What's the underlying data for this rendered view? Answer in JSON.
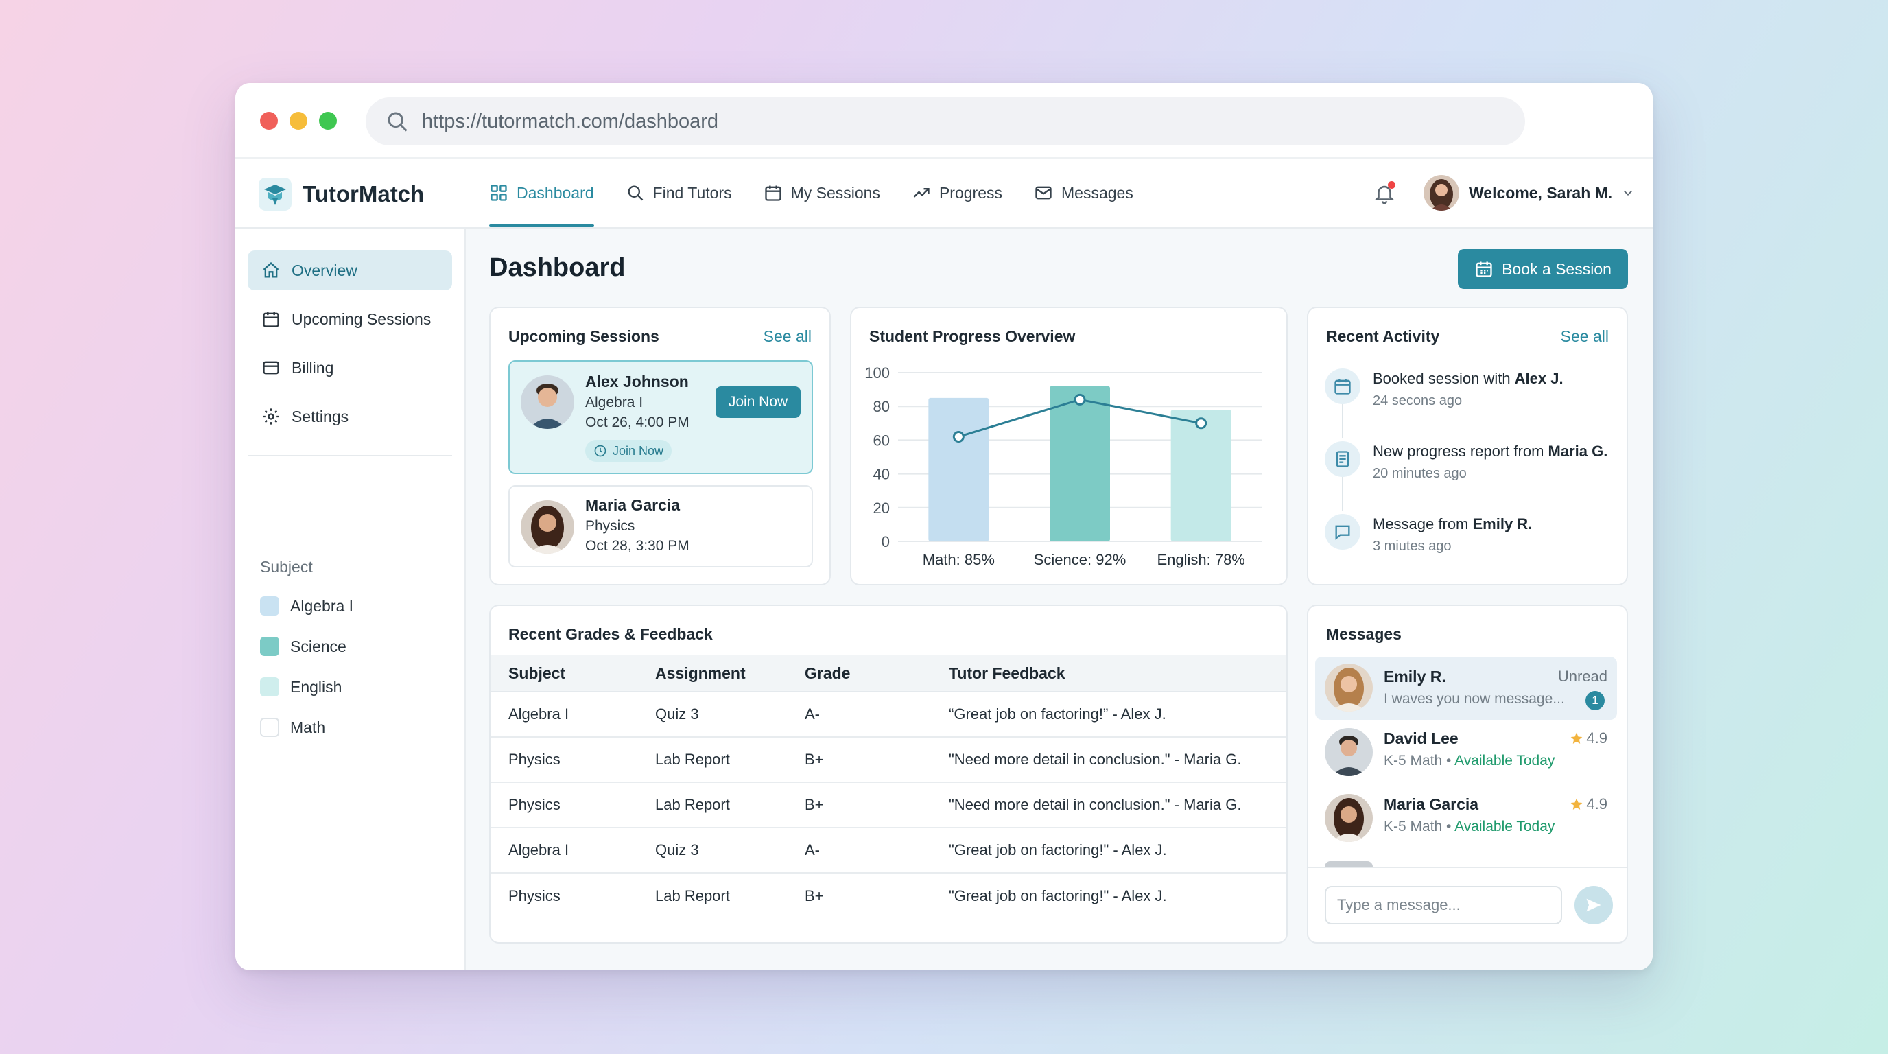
{
  "browser": {
    "url": "https://tutormatch.com/dashboard"
  },
  "app": {
    "name": "TutorMatch"
  },
  "nav": {
    "items": [
      {
        "label": "Dashboard",
        "icon": "grid-icon"
      },
      {
        "label": "Find Tutors",
        "icon": "search-icon"
      },
      {
        "label": "My Sessions",
        "icon": "calendar-icon"
      },
      {
        "label": "Progress",
        "icon": "trend-icon"
      },
      {
        "label": "Messages",
        "icon": "mail-icon"
      }
    ],
    "active": "Dashboard"
  },
  "user": {
    "greeting": "Welcome, Sarah M."
  },
  "sidebar": {
    "items": [
      {
        "label": "Overview"
      },
      {
        "label": "Upcoming Sessions"
      },
      {
        "label": "Billing"
      },
      {
        "label": "Settings"
      }
    ],
    "subject_heading": "Subject",
    "subjects": [
      {
        "label": "Algebra I",
        "color": "#c9e2f2"
      },
      {
        "label": "Science",
        "color": "#7ccbc6"
      },
      {
        "label": "English",
        "color": "#cfeeed"
      },
      {
        "label": "Math",
        "color": "#ffffff"
      }
    ]
  },
  "page": {
    "title": "Dashboard",
    "book_button": "Book a Session"
  },
  "upcoming": {
    "title": "Upcoming Sessions",
    "see_all": "See all",
    "sessions": [
      {
        "name": "Alex Johnson",
        "subject": "Algebra I",
        "time": "Oct 26, 4:00 PM",
        "button": "Join Now",
        "status": "Join Now"
      },
      {
        "name": "Maria Garcia",
        "subject": "Physics",
        "time": "Oct 28, 3:30 PM"
      }
    ]
  },
  "progress": {
    "title": "Student Progress Overview"
  },
  "chart_data": {
    "type": "bar",
    "title": "Student Progress Overview",
    "categories": [
      "Math: 85%",
      "Science: 92%",
      "English: 78%"
    ],
    "values": [
      85,
      92,
      78
    ],
    "line_values": [
      62,
      84,
      70
    ],
    "bar_colors": [
      "#c4def0",
      "#7dcbc5",
      "#c3e9e8"
    ],
    "line_color": "#2c7f95",
    "ylim": [
      0,
      100
    ],
    "yticks": [
      0,
      20,
      40,
      60,
      80,
      100
    ],
    "grid": true
  },
  "activity": {
    "title": "Recent Activity",
    "see_all": "See all",
    "items": [
      {
        "text": "Booked session with ",
        "bold": "Alex J.",
        "time": "24 secons ago",
        "icon": "calendar-icon"
      },
      {
        "text": "New progress report from ",
        "bold": "Maria G.",
        "time": "20 minutes ago",
        "icon": "report-icon"
      },
      {
        "text": "Message from ",
        "bold": "Emily R.",
        "time": "3 miutes ago",
        "icon": "chat-icon"
      }
    ]
  },
  "grades": {
    "title": "Recent Grades & Feedback",
    "columns": [
      "Subject",
      "Assignment",
      "Grade",
      "Tutor Feedback"
    ],
    "rows": [
      [
        "Algebra I",
        "Quiz 3",
        "A-",
        "“Great job on factoring!” - Alex J."
      ],
      [
        "Physics",
        "Lab Report",
        "B+",
        "\"Need more detail in conclusion.\" - Maria G."
      ],
      [
        "Physics",
        "Lab Report",
        "B+",
        "\"Need more detail in conclusion.\" - Maria G."
      ],
      [
        "Algebra I",
        "Quiz 3",
        "A-",
        "\"Great job on factoring!\" - Alex J."
      ],
      [
        "Physics",
        "Lab Report",
        "B+",
        "\"Great job on factoring!\" - Alex J."
      ]
    ]
  },
  "messages": {
    "title": "Messages",
    "threads": [
      {
        "name": "Emily R.",
        "preview": "I waves you now message...",
        "status": "Unread",
        "count": "1"
      },
      {
        "name": "David Lee",
        "subject": "K-5 Math",
        "availability": "Available Today",
        "rating": "4.9"
      },
      {
        "name": "Maria Garcia",
        "subject": "K-5 Math",
        "availability": "Available Today",
        "rating": "4.9"
      }
    ],
    "input_placeholder": "Type a message..."
  }
}
